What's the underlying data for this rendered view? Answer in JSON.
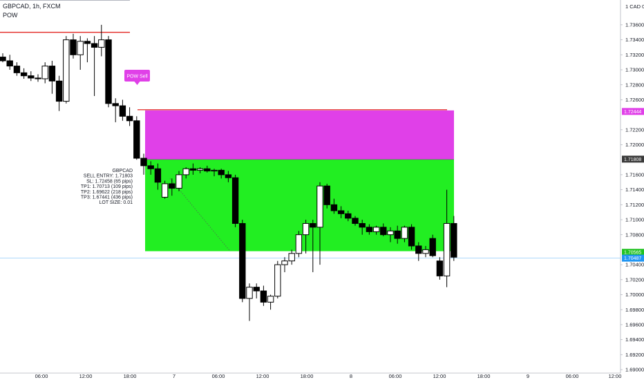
{
  "header": {
    "symbol_line": "GBPCAD, 1h, FXCM",
    "indicator": "POW"
  },
  "chart_data": {
    "type": "candlestick",
    "symbol": "GBPCAD",
    "timeframe": "1h",
    "broker": "FXCM",
    "axis_unit_label": "1 CAD 0",
    "y_ticks": [
      1.736,
      1.734,
      1.732,
      1.73,
      1.728,
      1.726,
      1.722,
      1.72,
      1.716,
      1.714,
      1.712,
      1.71,
      1.708,
      1.704,
      1.702,
      1.7,
      1.698,
      1.696,
      1.694,
      1.692,
      1.69
    ],
    "y_tick_labels": [
      "1.73600",
      "1.73400",
      "1.73200",
      "1.73000",
      "1.72800",
      "1.72600",
      "1.72200",
      "1.72000",
      "1.71600",
      "1.71400",
      "1.71200",
      "1.71000",
      "1.70800",
      "1.70400",
      "1.70200",
      "1.70000",
      "1.69800",
      "1.69600",
      "1.69400",
      "1.69200",
      "1.69000"
    ],
    "x_ticks": [
      "06:00",
      "12:00",
      "18:00",
      "7",
      "06:00",
      "12:00",
      "18:00",
      "8",
      "06:00",
      "12:00",
      "18:00",
      "9",
      "06:00",
      "12:00"
    ],
    "ohlc": [
      [
        1.7317,
        1.7322,
        1.731,
        1.7312
      ],
      [
        1.7312,
        1.732,
        1.73,
        1.7305
      ],
      [
        1.7305,
        1.731,
        1.7292,
        1.7296
      ],
      [
        1.7296,
        1.7302,
        1.7288,
        1.7292
      ],
      [
        1.7292,
        1.7298,
        1.7285,
        1.7289
      ],
      [
        1.7289,
        1.7294,
        1.7284,
        1.7288
      ],
      [
        1.7288,
        1.731,
        1.7282,
        1.7305
      ],
      [
        1.7305,
        1.7312,
        1.7268,
        1.7285
      ],
      [
        1.7285,
        1.7292,
        1.7245,
        1.7258
      ],
      [
        1.7258,
        1.7345,
        1.7255,
        1.734
      ],
      [
        1.734,
        1.7348,
        1.7315,
        1.732
      ],
      [
        1.732,
        1.7345,
        1.73,
        1.7338
      ],
      [
        1.7338,
        1.7342,
        1.731,
        1.7335
      ],
      [
        1.7335,
        1.7345,
        1.7265,
        1.733
      ],
      [
        1.733,
        1.736,
        1.7318,
        1.734
      ],
      [
        1.734,
        1.7345,
        1.725,
        1.7255
      ],
      [
        1.7255,
        1.7262,
        1.723,
        1.7252
      ],
      [
        1.7252,
        1.726,
        1.7232,
        1.7238
      ],
      [
        1.7238,
        1.725,
        1.7225,
        1.7232
      ],
      [
        1.7232,
        1.7238,
        1.718,
        1.7182
      ],
      [
        1.7182,
        1.7188,
        1.716,
        1.7172
      ],
      [
        1.7172,
        1.7178,
        1.716,
        1.7168
      ],
      [
        1.7168,
        1.7175,
        1.714,
        1.715
      ],
      [
        1.713,
        1.7152,
        1.7128,
        1.7148
      ],
      [
        1.7148,
        1.7155,
        1.7132,
        1.7142
      ],
      [
        1.7142,
        1.7165,
        1.7138,
        1.716
      ],
      [
        1.716,
        1.717,
        1.7155,
        1.7168
      ],
      [
        1.7168,
        1.7175,
        1.716,
        1.7166
      ],
      [
        1.7166,
        1.717,
        1.7162,
        1.7168
      ],
      [
        1.7168,
        1.7172,
        1.7163,
        1.7165
      ],
      [
        1.7165,
        1.7168,
        1.7158,
        1.7166
      ],
      [
        1.7166,
        1.7168,
        1.7155,
        1.716
      ],
      [
        1.716,
        1.7165,
        1.715,
        1.7156
      ],
      [
        1.7156,
        1.716,
        1.709,
        1.7095
      ],
      [
        1.7095,
        1.71,
        1.699,
        1.6995
      ],
      [
        1.6995,
        1.7015,
        1.6965,
        1.701
      ],
      [
        1.701,
        1.7015,
        1.6995,
        1.7005
      ],
      [
        1.7005,
        1.7012,
        1.6985,
        1.699
      ],
      [
        1.699,
        1.7,
        1.698,
        1.6998
      ],
      [
        1.6998,
        1.7045,
        1.6995,
        1.704
      ],
      [
        1.704,
        1.705,
        1.703,
        1.7045
      ],
      [
        1.7045,
        1.706,
        1.704,
        1.7055
      ],
      [
        1.7055,
        1.7085,
        1.705,
        1.708
      ],
      [
        1.708,
        1.71,
        1.7055,
        1.7095
      ],
      [
        1.7095,
        1.71,
        1.703,
        1.709
      ],
      [
        1.709,
        1.715,
        1.704,
        1.7145
      ],
      [
        1.7145,
        1.7148,
        1.7115,
        1.712
      ],
      [
        1.712,
        1.7128,
        1.7108,
        1.7112
      ],
      [
        1.7112,
        1.7118,
        1.7102,
        1.7108
      ],
      [
        1.7108,
        1.7112,
        1.7098,
        1.7102
      ],
      [
        1.7102,
        1.7105,
        1.7092,
        1.7095
      ],
      [
        1.7095,
        1.71,
        1.708,
        1.709
      ],
      [
        1.709,
        1.7094,
        1.708,
        1.7084
      ],
      [
        1.7084,
        1.7092,
        1.708,
        1.709
      ],
      [
        1.709,
        1.7095,
        1.7078,
        1.708
      ],
      [
        1.708,
        1.709,
        1.707,
        1.7085
      ],
      [
        1.7085,
        1.7092,
        1.7068,
        1.7075
      ],
      [
        1.7075,
        1.7092,
        1.707,
        1.709
      ],
      [
        1.709,
        1.7094,
        1.706,
        1.7065
      ],
      [
        1.7065,
        1.707,
        1.7045,
        1.7055
      ],
      [
        1.7055,
        1.7065,
        1.705,
        1.706
      ],
      [
        1.7075,
        1.708,
        1.705,
        1.7052
      ],
      [
        1.7045,
        1.705,
        1.702,
        1.7025
      ],
      [
        1.7025,
        1.714,
        1.701,
        1.7095
      ],
      [
        1.7095,
        1.7105,
        1.7045,
        1.705
      ]
    ],
    "zones": {
      "stop_loss": {
        "top": 1.72458,
        "bottom": 1.71803
      },
      "take_profit": {
        "top": 1.71803,
        "bottom": 1.7058
      }
    },
    "lines": {
      "resistance_level": 1.735,
      "sl_line": 1.72458,
      "current_price_line": 1.70487
    },
    "price_tags": [
      {
        "label": "1.72444",
        "value": 1.72444,
        "color": "#e040e8"
      },
      {
        "label": "1.71808",
        "value": 1.71808,
        "color": "#3a3a3a"
      },
      {
        "label": "1.70565",
        "value": 1.70565,
        "color": "#22c222"
      },
      {
        "label": "1.70487",
        "value": 1.70487,
        "color": "#2196f3"
      }
    ],
    "signal_label": "POW Sell",
    "trade_info": [
      "GBPCAD",
      "SELL ENTRY: 1.71803",
      "SL: 1.72458 (65 pips)",
      "TP1: 1.70713 (109 pips)",
      "TP2: 1.69622 (218 pips)",
      "TP3: 1.67441 (436 pips)",
      "LOT SIZE: 0.01"
    ]
  }
}
